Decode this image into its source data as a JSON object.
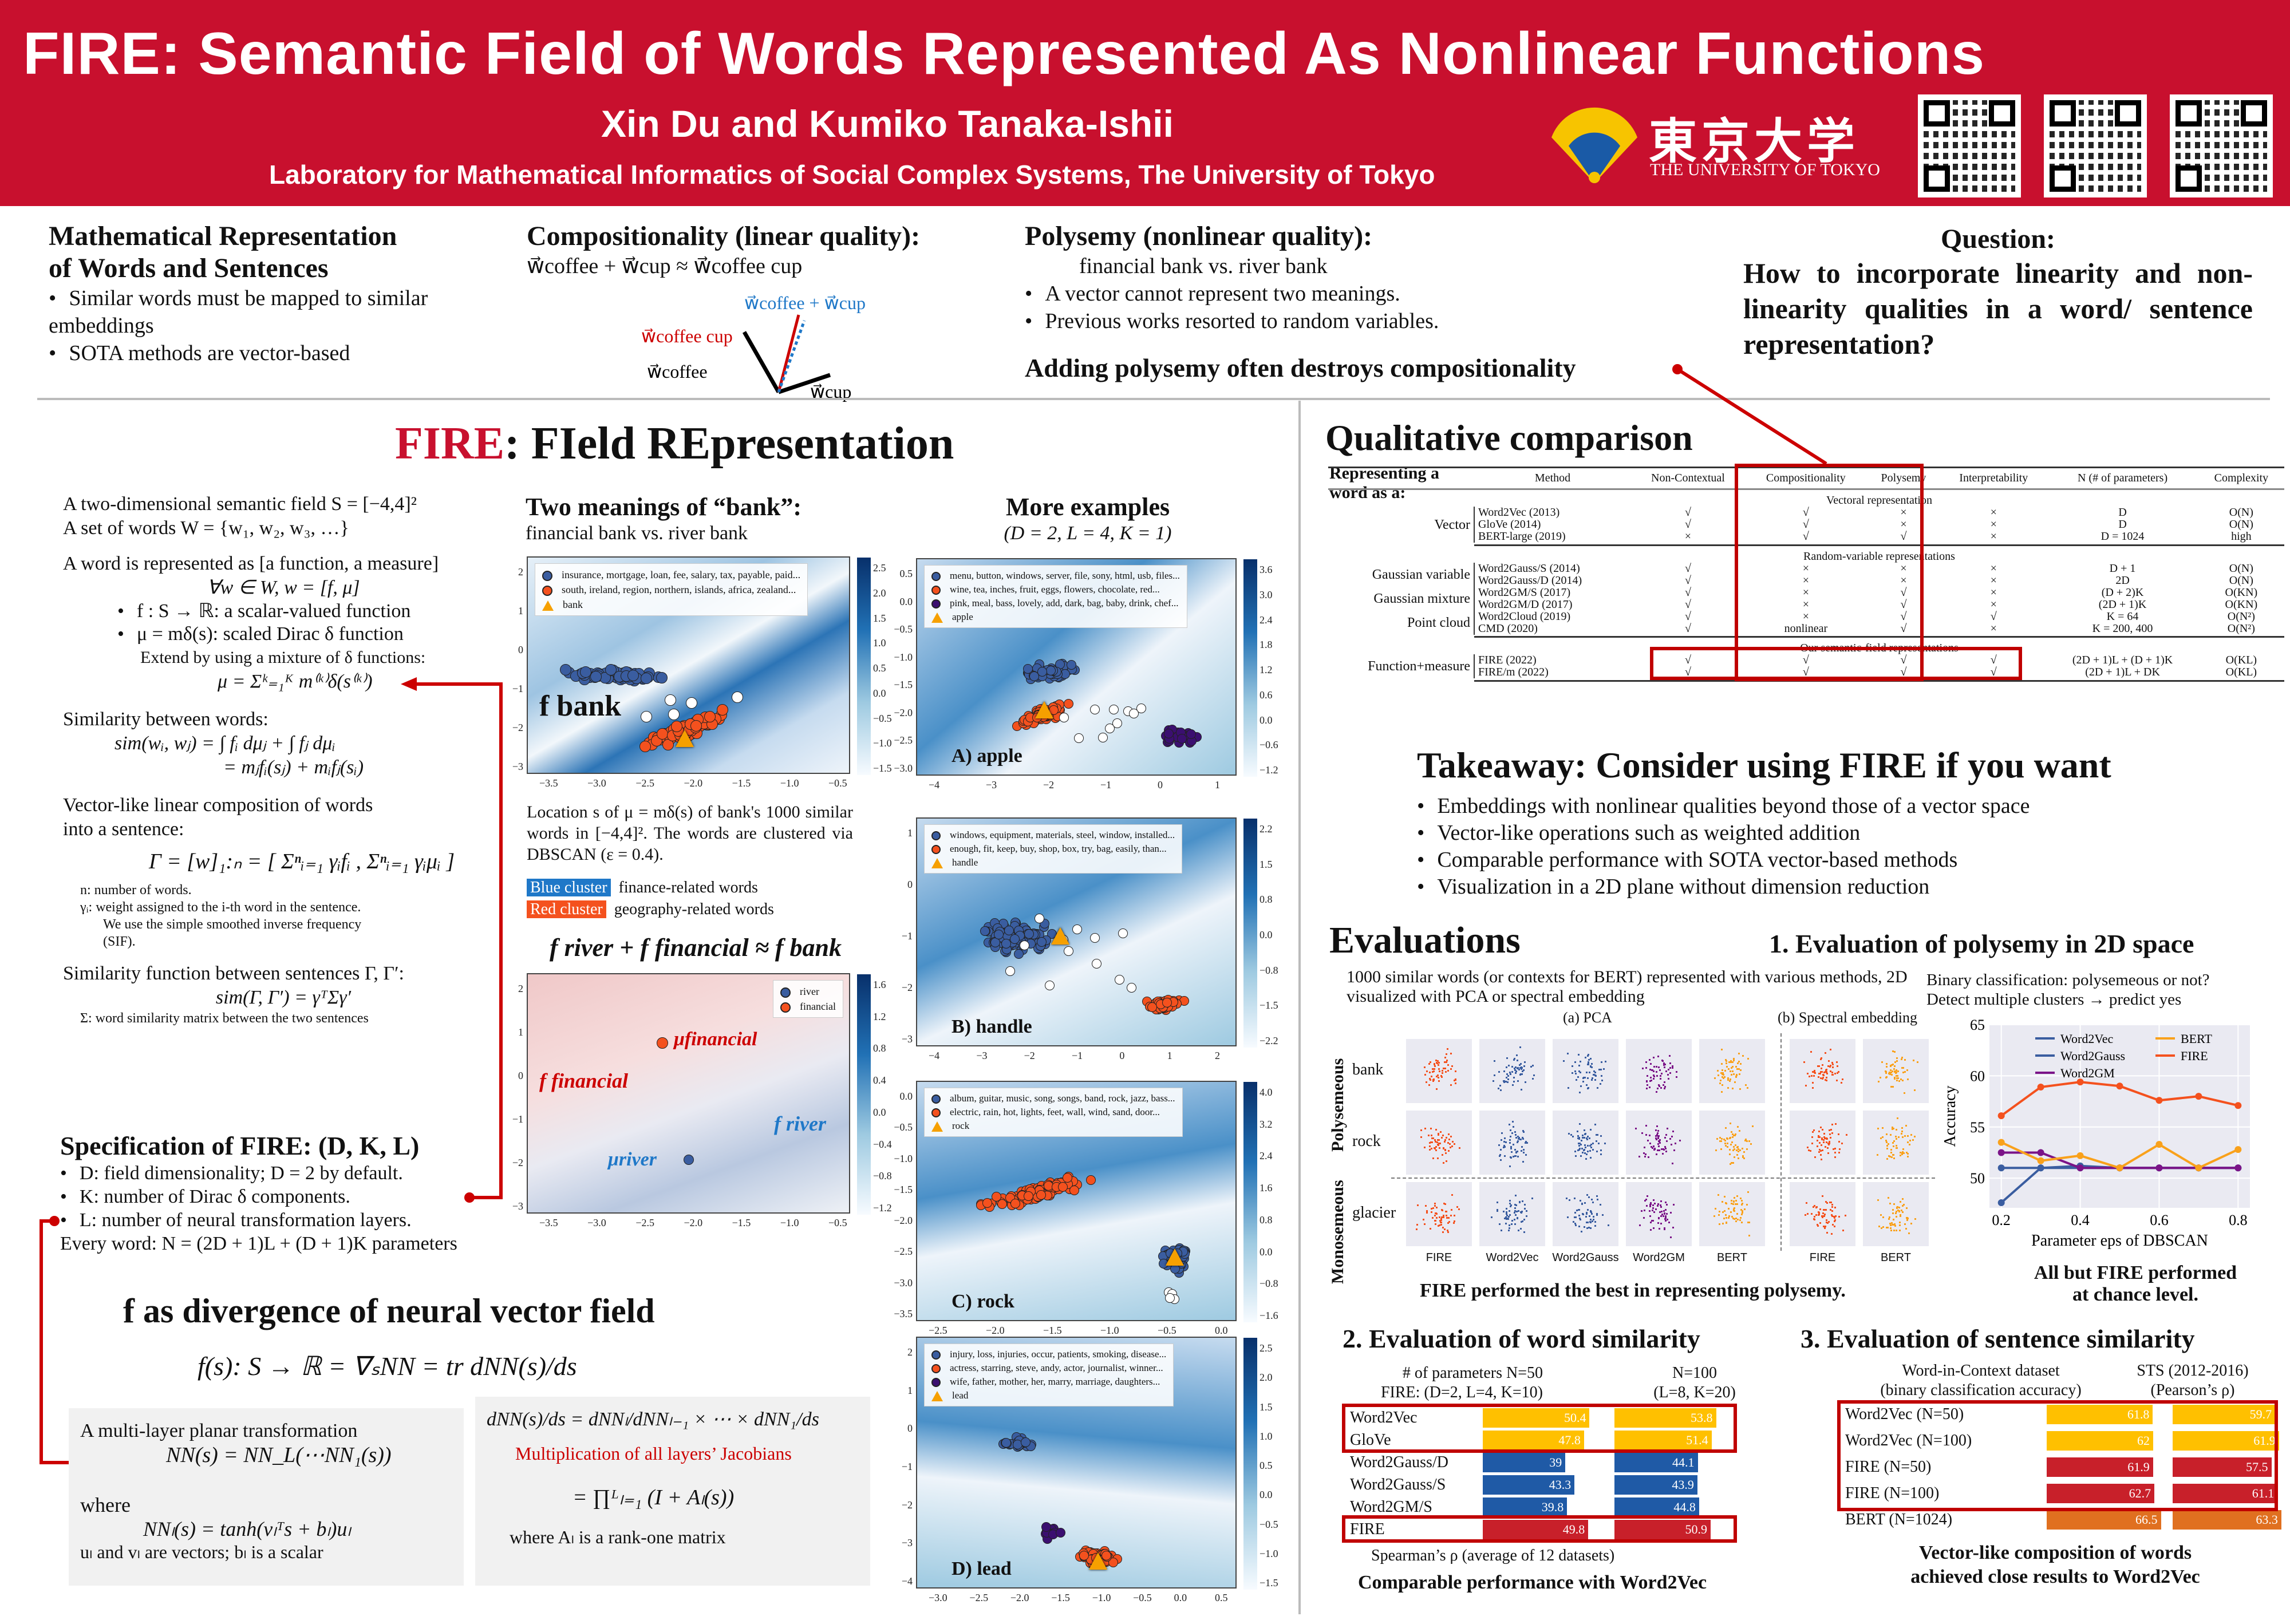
{
  "header": {
    "title": "FIRE: Semantic Field of Words Represented As Nonlinear Functions",
    "authors": "Xin Du and Kumiko Tanaka-Ishii",
    "affiliation": "Laboratory for Mathematical Informatics of Social Complex Systems, The University of Tokyo",
    "logo_jp": "東京大学",
    "logo_en": "THE UNIVERSITY OF TOKYO",
    "brand_color": "#c8102e"
  },
  "intro": {
    "math": {
      "title1": "Mathematical Representation",
      "title2": "of Words and Sentences",
      "bullets": [
        "Similar words must be mapped to similar embeddings",
        "SOTA methods are vector-based"
      ]
    },
    "comp": {
      "title": "Compositionality (linear quality):",
      "equation": "w⃗coffee + w⃗cup ≈ w⃗coffee cup",
      "sum_label": "w⃗coffee + w⃗cup",
      "cc_label": "w⃗coffee cup",
      "coffee_label": "w⃗coffee",
      "cup_label": "w⃗cup"
    },
    "poly": {
      "title": "Polysemy (nonlinear quality):",
      "example": "financial bank vs. river bank",
      "bullets": [
        "A vector cannot represent two meanings.",
        "Previous works resorted to random variables."
      ],
      "conclusion": "Adding polysemy often destroys compositionality"
    },
    "question": {
      "title": "Question:",
      "text": "How to incorporate linearity and non-linearity qualities in a word/ sentence representation?"
    }
  },
  "fire": {
    "title_fire": "FIRE",
    "title_rest": ": FIeld REpresentation",
    "lines": [
      "A two-dimensional semantic field S = [−4,4]²",
      "A set of words W = {w₁, w₂, w₃, …}"
    ],
    "word_rep": "A word is represented as [a function, a measure]",
    "word_rep_eq": "∀w ∈ W,      w = [f, μ]",
    "bullets": [
      "f : S → ℝ: a scalar-valued function",
      "μ = mδ(s): scaled Dirac δ function"
    ],
    "sub_bullet": "Extend by using a mixture of δ functions:",
    "mixture": "μ = Σᵏ₌₁ᴷ m⁽ᵏ⁾δ(s⁽ᵏ⁾)",
    "sim_title": "Similarity between words:",
    "sim_eq1": "sim(wᵢ, wⱼ) = ∫ fᵢ dμⱼ + ∫ fⱼ dμᵢ",
    "sim_eq2": "= mⱼfᵢ(sⱼ) + mᵢfⱼ(sᵢ)",
    "comp_title1": "Vector-like linear composition of words",
    "comp_title2": "into a sentence:",
    "comp_eq": "Γ = [w]₁:ₙ = [ Σⁿᵢ₌₁ γᵢfᵢ , Σⁿᵢ₌₁ γᵢμᵢ ]",
    "notes": [
      "n: number of words.",
      "γᵢ: weight assigned to the i-th word in the sentence.",
      "We use the simple smoothed inverse frequency",
      "(SIF)."
    ],
    "ssim_title": "Similarity function between sentences Γ, Γ′:",
    "ssim_eq": "sim(Γ, Γ′) = γᵀΣγ′",
    "ssim_note": "Σ: word similarity matrix between the two sentences",
    "spec_title": "Specification of FIRE: (D, K, L)",
    "spec": [
      "D: field dimensionality; D = 2 by default.",
      "K: number of Dirac δ components.",
      "L: number of neural transformation layers."
    ],
    "spec_total": "Every word: N = (2D + 1)L + (D + 1)K parameters"
  },
  "bank": {
    "title": "Two meanings of “bank”:",
    "subtitle": "financial bank vs. river bank",
    "legend": [
      "insurance, mortgage, loan, fee, salary, tax, payable, paid...",
      "south, ireland, region, northern, islands, africa, zealand...",
      "bank"
    ],
    "label": "f bank",
    "xticks": [
      "−3.5",
      "−3.0",
      "−2.5",
      "−2.0",
      "−1.5",
      "−1.0",
      "−0.5"
    ],
    "yticks": [
      "2",
      "1",
      "0",
      "−1",
      "−2",
      "−3"
    ],
    "cticks": [
      "2.5",
      "2.0",
      "1.5",
      "1.0",
      "0.5",
      "0.0",
      "−0.5",
      "−1.0",
      "−1.5"
    ],
    "caption": "Location s of μ = mδ(s) of bank's 1000 similar words in [−4,4]². The words are clustered via DBSCAN (ε = 0.4).",
    "blue_tag": "Blue cluster",
    "blue_desc": "finance-related words",
    "red_tag": "Red cluster",
    "red_desc": "geography-related words"
  },
  "river": {
    "title": "f river + f financial ≈ f bank",
    "legend": [
      "river",
      "financial"
    ],
    "mu_fin": "μfinancial",
    "f_fin": "f financial",
    "f_river": "f river",
    "mu_river": "μriver",
    "xticks": [
      "−3.5",
      "−3.0",
      "−2.5",
      "−2.0",
      "−1.5",
      "−1.0",
      "−0.5"
    ],
    "yticks": [
      "2",
      "1",
      "0",
      "−1",
      "−2",
      "−3"
    ],
    "cticks": [
      "1.6",
      "1.2",
      "0.8",
      "0.4",
      "0.0",
      "−0.4",
      "−0.8",
      "−1.2"
    ]
  },
  "examples": {
    "title": "More examples",
    "params": "(D = 2, L = 4, K = 1)",
    "plots": [
      {
        "label": "A) apple",
        "legend": [
          "menu, button, windows, server, file, sony, html, usb, files...",
          "wine, tea, inches, fruit, eggs, flowers, chocolate, red...",
          "pink, meal, bass, lovely, add, dark, bag, baby, drink, chef...",
          "apple"
        ],
        "xticks": [
          "−4",
          "−3",
          "−2",
          "−1",
          "0",
          "1"
        ],
        "yticks": [
          "0.5",
          "0.0",
          "−0.5",
          "−1.0",
          "−1.5",
          "−2.0",
          "−2.5",
          "−3.0"
        ],
        "cticks": [
          "3.6",
          "3.0",
          "2.4",
          "1.8",
          "1.2",
          "0.6",
          "0.0",
          "−0.6",
          "−1.2"
        ]
      },
      {
        "label": "B) handle",
        "legend": [
          "windows, equipment, materials, steel, window, installed...",
          "enough, fit, keep, buy, shop, box, try, bag, easily, than...",
          "handle"
        ],
        "xticks": [
          "−4",
          "−3",
          "−2",
          "−1",
          "0",
          "1",
          "2"
        ],
        "yticks": [
          "1",
          "0",
          "−1",
          "−2",
          "−3"
        ],
        "cticks": [
          "2.2",
          "1.5",
          "0.8",
          "0.0",
          "−0.8",
          "−1.5",
          "−2.2"
        ]
      },
      {
        "label": "C) rock",
        "legend": [
          "album, guitar, music, song, songs, band, rock, jazz, bass...",
          "electric, rain, hot, lights, feet, wall, wind, sand, door...",
          "rock"
        ],
        "xticks": [
          "−2.5",
          "−2.0",
          "−1.5",
          "−1.0",
          "−0.5",
          "0.0"
        ],
        "yticks": [
          "0.0",
          "−0.5",
          "−1.0",
          "−1.5",
          "−2.0",
          "−2.5",
          "−3.0",
          "−3.5"
        ],
        "cticks": [
          "4.0",
          "3.2",
          "2.4",
          "1.6",
          "0.8",
          "0.0",
          "−0.8",
          "−1.6"
        ]
      },
      {
        "label": "D) lead",
        "legend": [
          "injury, loss, injuries, occur, patients, smoking, disease...",
          "actress, starring, steve, andy, actor, journalist, winner...",
          "wife, father, mother, her, marry, marriage, daughters...",
          "lead"
        ],
        "xticks": [
          "−3.0",
          "−2.5",
          "−2.0",
          "−1.5",
          "−1.0",
          "−0.5",
          "0.0",
          "0.5"
        ],
        "yticks": [
          "2",
          "1",
          "0",
          "−1",
          "−2",
          "−3",
          "−4"
        ],
        "cticks": [
          "2.5",
          "2.0",
          "1.5",
          "1.0",
          "0.5",
          "0.0",
          "−0.5",
          "−1.0",
          "−1.5"
        ]
      }
    ]
  },
  "divergence": {
    "title": "f as divergence of neural vector field",
    "main_eq": "f(s): S → ℝ = ∇ₛNN = tr dNN(s)/ds",
    "box1_title": "A multi-layer planar transformation",
    "box1_eq": "NN(s) = NN_L(⋯NN₁(s))",
    "box1_where": "where",
    "box1_eq2": "NNₗ(s) = tanh(vₗᵀs + bₗ)uₗ",
    "box1_note": "uₗ and vₗ are vectors; bₗ is a scalar",
    "box2_eq": "dNN(s)/ds = dNNₗ/dNNₗ₋₁ × ⋯ × dNN₁/ds",
    "box2_red": "Multiplication of all layers’ Jacobians",
    "box2_eq2": "= ∏ᴸₗ₌₁ (I + Aₗ(s))",
    "box2_note": "where Aₗ is a rank-one matrix"
  },
  "qual": {
    "title": "Qualitative comparison",
    "rep_label": "Representing a word as a:",
    "columns": [
      "Method",
      "Non-Contextual",
      "Compositionality",
      "Polysemy",
      "Interpretability",
      "N (# of parameters)",
      "Complexity"
    ],
    "groups": [
      {
        "caption": "Vectoral representation",
        "sets": [
          {
            "label": "Vector",
            "rows": [
              [
                "Word2Vec (2013)",
                "√",
                "√",
                "×",
                "×",
                "D",
                "O(N)"
              ],
              [
                "GloVe (2014)",
                "√",
                "√",
                "×",
                "×",
                "D",
                "O(N)"
              ],
              [
                "BERT-large (2019)",
                "×",
                "√",
                "√",
                "×",
                "D = 1024",
                "high"
              ]
            ]
          }
        ]
      },
      {
        "caption": "Random-variable representations",
        "sets": [
          {
            "label": "Gaussian variable",
            "rows": [
              [
                "Word2Gauss/S (2014)",
                "√",
                "×",
                "×",
                "×",
                "D + 1",
                "O(N)"
              ],
              [
                "Word2Gauss/D (2014)",
                "√",
                "×",
                "×",
                "×",
                "2D",
                "O(N)"
              ]
            ]
          },
          {
            "label": "Gaussian mixture",
            "rows": [
              [
                "Word2GM/S (2017)",
                "√",
                "×",
                "√",
                "×",
                "(D + 2)K",
                "O(KN)"
              ],
              [
                "Word2GM/D (2017)",
                "√",
                "×",
                "√",
                "×",
                "(2D + 1)K",
                "O(KN)"
              ]
            ]
          },
          {
            "label": "Point cloud",
            "rows": [
              [
                "Word2Cloud (2019)",
                "√",
                "×",
                "√",
                "√",
                "K = 64",
                "O(N²)"
              ],
              [
                "CMD (2020)",
                "√",
                "nonlinear",
                "√",
                "×",
                "K = 200, 400",
                "O(N²)"
              ]
            ]
          }
        ]
      },
      {
        "caption": "Our semantic-field representations",
        "sets": [
          {
            "label": "Function+measure",
            "rows": [
              [
                "FIRE (2022)",
                "√",
                "√",
                "√",
                "√",
                "(2D + 1)L + (D + 1)K",
                "O(KL)"
              ],
              [
                "FIRE/m (2022)",
                "√",
                "√",
                "√",
                "√",
                "(2D + 1)L + DK",
                "O(KL)"
              ]
            ]
          }
        ]
      }
    ]
  },
  "takeaway": {
    "title": "Takeaway: Consider using FIRE if you want",
    "bullets": [
      "Embeddings with nonlinear qualities beyond those of a vector space",
      "Vector-like operations such as weighted addition",
      "Comparable performance with SOTA vector-based methods",
      "Visualization in a 2D plane without dimension reduction"
    ]
  },
  "evals": {
    "title": "Evaluations",
    "e1_title": "1. Evaluation of polysemy in 2D space",
    "e1_desc": "1000 similar words (or contexts for BERT) represented with various methods, 2D visualized with PCA or spectral embedding",
    "pca": "(a) PCA",
    "spectral": "(b) Spectral embedding",
    "group_poly": "Polysemeous",
    "group_mono": "Monosemeous",
    "rows": [
      "bank",
      "rock",
      "glacier"
    ],
    "cols": [
      "FIRE",
      "Word2Vec",
      "Word2Gauss",
      "Word2GM",
      "BERT",
      "FIRE",
      "BERT"
    ],
    "grid_caption": "FIRE performed the best in representing polysemy.",
    "e1_right1": "Binary classification: polysemeous or not?",
    "e1_right2": "Detect multiple clusters → predict yes",
    "chart_caption1": "All but FIRE performed",
    "chart_caption2": "at chance level.",
    "e2_title": "2. Evaluation of word similarity",
    "e2_h1": "# of parameters N=50",
    "e2_h1b": "FIRE: (D=2, L=4, K=10)",
    "e2_h2": "N=100",
    "e2_h2b": "(L=8, K=20)",
    "e2_foot": "Spearman’s ρ (average of 12 datasets)",
    "e2_caption": "Comparable performance with Word2Vec",
    "e3_title": "3. Evaluation of sentence similarity",
    "e3_h1": "Word-in-Context dataset",
    "e3_h1b": "(binary classification accuracy)",
    "e3_h2": "STS (2012-2016)",
    "e3_h2b": "(Pearson’s ρ)",
    "e3_caption1": "Vector-like composition of words",
    "e3_caption2": "achieved close results to Word2Vec"
  },
  "chart_data": [
    {
      "type": "line",
      "title": "",
      "xlabel": "Parameter eps of DBSCAN",
      "ylabel": "Accuracy",
      "x": [
        0.2,
        0.3,
        0.4,
        0.5,
        0.6,
        0.7,
        0.8
      ],
      "xticks": [
        "0.2",
        "0.4",
        "0.6",
        "0.8"
      ],
      "yticks": [
        "50",
        "55",
        "60",
        "65"
      ],
      "xlim": [
        0.17,
        0.83
      ],
      "ylim": [
        47.1,
        65
      ],
      "grid": true,
      "legend": "top",
      "series": [
        {
          "name": "Word2Vec",
          "color": "#3a5da0",
          "values": [
            51.0,
            51.0,
            51.0,
            51.0,
            51.0,
            51.0,
            51.0
          ]
        },
        {
          "name": "Word2Gauss",
          "color": "#3a5da0",
          "values": [
            47.6,
            51.0,
            51.2,
            51.0,
            51.0,
            51.0,
            51.0
          ]
        },
        {
          "name": "Word2GM",
          "color": "#7b1488",
          "values": [
            52.5,
            52.5,
            51.0,
            51.0,
            51.0,
            51.0,
            51.0
          ]
        },
        {
          "name": "BERT",
          "color": "#f9a11b",
          "values": [
            53.5,
            51.7,
            52.2,
            51.0,
            53.3,
            51.0,
            52.8
          ]
        },
        {
          "name": "FIRE",
          "color": "#f4511e",
          "values": [
            56.1,
            58.9,
            59.4,
            59.0,
            57.6,
            58.0,
            57.1
          ]
        }
      ]
    },
    {
      "type": "bar",
      "title": "2. Evaluation of word similarity",
      "categories": [
        "Word2Vec",
        "GloVe",
        "Word2Gauss/D",
        "Word2Gauss/S",
        "Word2GM/S",
        "FIRE"
      ],
      "series": [
        {
          "name": "N=50",
          "values": [
            50.4,
            47.8,
            39,
            43.3,
            39.8,
            49.8
          ]
        },
        {
          "name": "N=100",
          "values": [
            53.8,
            51.4,
            44.1,
            43.9,
            44.8,
            50.9
          ]
        }
      ],
      "colors": [
        "#ffc000",
        "#ffc000",
        "#1f5aa6",
        "#1f5aa6",
        "#1f5aa6",
        "#c8202a"
      ]
    },
    {
      "type": "bar",
      "title": "3. Evaluation of sentence similarity",
      "categories": [
        "Word2Vec (N=50)",
        "Word2Vec (N=100)",
        "FIRE (N=50)",
        "FIRE (N=100)",
        "BERT (N=1024)"
      ],
      "series": [
        {
          "name": "Word-in-Context dataset",
          "values": [
            61.8,
            62,
            61.9,
            62.7,
            66.5
          ]
        },
        {
          "name": "STS (2012-2016)",
          "values": [
            59.7,
            61.9,
            57.5,
            61.1,
            63.3
          ]
        }
      ],
      "colors": [
        "#ffc000",
        "#ffc000",
        "#c8202a",
        "#c8202a",
        "#e07020"
      ]
    }
  ]
}
